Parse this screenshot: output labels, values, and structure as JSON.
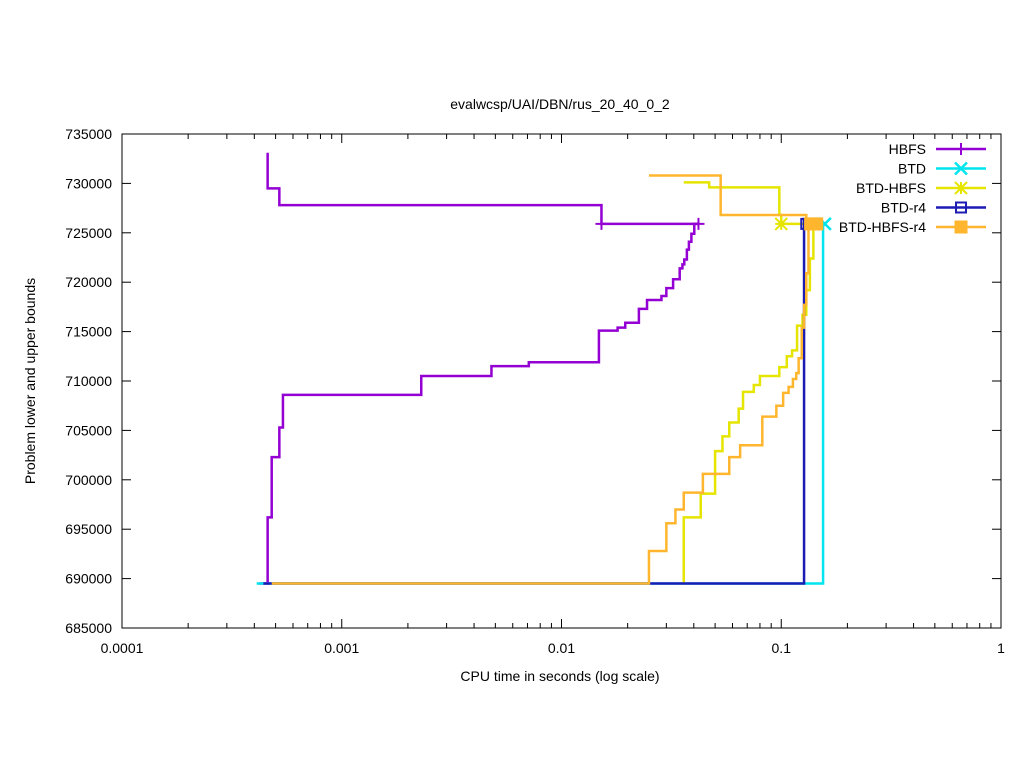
{
  "chart_data": {
    "type": "line",
    "title": "evalwcsp/UAI/DBN/rus_20_40_0_2",
    "xlabel": "CPU time in seconds (log scale)",
    "ylabel": "Problem lower and upper bounds",
    "xscale": "log",
    "xlim": [
      0.0001,
      1
    ],
    "ylim": [
      685000,
      735000
    ],
    "grid": false,
    "legend_position": "top-right",
    "x_ticks": [
      {
        "value": 0.0001,
        "label": "0.0001"
      },
      {
        "value": 0.001,
        "label": "0.001"
      },
      {
        "value": 0.01,
        "label": "0.01"
      },
      {
        "value": 0.1,
        "label": "0.1"
      },
      {
        "value": 1,
        "label": "1"
      }
    ],
    "y_ticks": [
      {
        "value": 685000,
        "label": "685000"
      },
      {
        "value": 690000,
        "label": "690000"
      },
      {
        "value": 695000,
        "label": "695000"
      },
      {
        "value": 700000,
        "label": "700000"
      },
      {
        "value": 705000,
        "label": "705000"
      },
      {
        "value": 710000,
        "label": "710000"
      },
      {
        "value": 715000,
        "label": "715000"
      },
      {
        "value": 720000,
        "label": "720000"
      },
      {
        "value": 725000,
        "label": "725000"
      },
      {
        "value": 730000,
        "label": "730000"
      },
      {
        "value": 735000,
        "label": "735000"
      }
    ],
    "series": [
      {
        "name": "HBFS",
        "color": "#9400d3",
        "marker": "plus",
        "lines": [
          [
            [
              0.00046,
              733100
            ],
            [
              0.00046,
              729500
            ],
            [
              0.00052,
              729500
            ],
            [
              0.00052,
              727800
            ],
            [
              0.0152,
              727800
            ],
            [
              0.0152,
              725900
            ],
            [
              0.042,
              725900
            ]
          ],
          [
            [
              0.00042,
              689500
            ],
            [
              0.00046,
              689500
            ],
            [
              0.00046,
              696200
            ],
            [
              0.00048,
              696200
            ],
            [
              0.00048,
              702300
            ],
            [
              0.00052,
              702300
            ],
            [
              0.00052,
              705300
            ],
            [
              0.00054,
              705300
            ],
            [
              0.00054,
              708600
            ],
            [
              0.0023,
              708600
            ],
            [
              0.0023,
              710500
            ],
            [
              0.0048,
              710500
            ],
            [
              0.0048,
              711500
            ],
            [
              0.0071,
              711500
            ],
            [
              0.0071,
              711900
            ],
            [
              0.0148,
              711900
            ],
            [
              0.0148,
              715100
            ],
            [
              0.018,
              715100
            ],
            [
              0.018,
              715400
            ],
            [
              0.0195,
              715400
            ],
            [
              0.0195,
              715900
            ],
            [
              0.0225,
              715900
            ],
            [
              0.0225,
              717300
            ],
            [
              0.0245,
              717300
            ],
            [
              0.0245,
              718200
            ],
            [
              0.0285,
              718200
            ],
            [
              0.0285,
              718600
            ],
            [
              0.03,
              718600
            ],
            [
              0.03,
              719400
            ],
            [
              0.0322,
              719400
            ],
            [
              0.0322,
              720300
            ],
            [
              0.0345,
              720300
            ],
            [
              0.0345,
              721400
            ],
            [
              0.0355,
              721400
            ],
            [
              0.0355,
              721800
            ],
            [
              0.0362,
              721800
            ],
            [
              0.0362,
              722300
            ],
            [
              0.0372,
              722300
            ],
            [
              0.0372,
              723300
            ],
            [
              0.038,
              723300
            ],
            [
              0.038,
              724100
            ],
            [
              0.039,
              724100
            ],
            [
              0.039,
              724900
            ],
            [
              0.0402,
              724900
            ],
            [
              0.0402,
              725900
            ],
            [
              0.042,
              725900
            ]
          ]
        ],
        "markers": [
          [
            0.0152,
            725900
          ],
          [
            0.042,
            725900
          ]
        ]
      },
      {
        "name": "BTD",
        "color": "#00e5ee",
        "marker": "cross",
        "lines": [
          [
            [
              0.00041,
              689500
            ],
            [
              0.155,
              689500
            ],
            [
              0.155,
              725900
            ]
          ],
          [
            [
              0.155,
              725900
            ],
            [
              0.16,
              725900
            ]
          ]
        ],
        "markers": [
          [
            0.158,
            725900
          ]
        ]
      },
      {
        "name": "BTD-HBFS",
        "color": "#e5e500",
        "marker": "star",
        "lines": [
          [
            [
              0.036,
              730100
            ],
            [
              0.047,
              730100
            ],
            [
              0.047,
              729600
            ],
            [
              0.098,
              729600
            ],
            [
              0.098,
              726800
            ],
            [
              0.1,
              726800
            ],
            [
              0.1,
              725900
            ],
            [
              0.14,
              725900
            ]
          ],
          [
            [
              0.036,
              689500
            ],
            [
              0.036,
              696200
            ],
            [
              0.043,
              696200
            ],
            [
              0.043,
              698600
            ],
            [
              0.05,
              698600
            ],
            [
              0.05,
              702900
            ],
            [
              0.054,
              702900
            ],
            [
              0.054,
              704400
            ],
            [
              0.058,
              704400
            ],
            [
              0.058,
              705800
            ],
            [
              0.064,
              705800
            ],
            [
              0.064,
              707200
            ],
            [
              0.067,
              707200
            ],
            [
              0.067,
              708900
            ],
            [
              0.075,
              708900
            ],
            [
              0.075,
              709600
            ],
            [
              0.08,
              709600
            ],
            [
              0.08,
              710500
            ],
            [
              0.098,
              710500
            ],
            [
              0.098,
              711400
            ],
            [
              0.106,
              711400
            ],
            [
              0.106,
              712500
            ],
            [
              0.112,
              712500
            ],
            [
              0.112,
              713100
            ],
            [
              0.118,
              713100
            ],
            [
              0.118,
              715600
            ],
            [
              0.125,
              715600
            ],
            [
              0.125,
              716700
            ],
            [
              0.13,
              716700
            ],
            [
              0.13,
              719200
            ],
            [
              0.135,
              719200
            ],
            [
              0.135,
              722400
            ],
            [
              0.14,
              722400
            ],
            [
              0.14,
              725900
            ]
          ]
        ],
        "markers": [
          [
            0.1,
            725900
          ],
          [
            0.14,
            725900
          ]
        ]
      },
      {
        "name": "BTD-r4",
        "color": "#1c1cb4",
        "marker": "open-square",
        "lines": [
          [
            [
              0.00044,
              689500
            ],
            [
              0.127,
              689500
            ],
            [
              0.127,
              726400
            ],
            [
              0.13,
              726400
            ],
            [
              0.13,
              725900
            ],
            [
              0.135,
              725900
            ]
          ]
        ],
        "markers": [
          [
            0.13,
            725900
          ]
        ]
      },
      {
        "name": "BTD-HBFS-r4",
        "color": "#ffb62e",
        "marker": "filled-square",
        "lines": [
          [
            [
              0.025,
              730800
            ],
            [
              0.053,
              730800
            ],
            [
              0.053,
              726800
            ],
            [
              0.13,
              726800
            ],
            [
              0.13,
              725900
            ],
            [
              0.145,
              725900
            ]
          ],
          [
            [
              0.00048,
              689500
            ],
            [
              0.025,
              689500
            ],
            [
              0.025,
              692800
            ],
            [
              0.03,
              692800
            ],
            [
              0.03,
              695600
            ],
            [
              0.033,
              695600
            ],
            [
              0.033,
              697000
            ],
            [
              0.036,
              697000
            ],
            [
              0.036,
              698700
            ],
            [
              0.044,
              698700
            ],
            [
              0.044,
              700600
            ],
            [
              0.058,
              700600
            ],
            [
              0.058,
              702300
            ],
            [
              0.065,
              702300
            ],
            [
              0.065,
              703500
            ],
            [
              0.082,
              703500
            ],
            [
              0.082,
              706400
            ],
            [
              0.095,
              706400
            ],
            [
              0.095,
              707500
            ],
            [
              0.102,
              707500
            ],
            [
              0.102,
              708800
            ],
            [
              0.108,
              708800
            ],
            [
              0.108,
              709400
            ],
            [
              0.113,
              709400
            ],
            [
              0.113,
              710200
            ],
            [
              0.117,
              710200
            ],
            [
              0.117,
              710800
            ],
            [
              0.12,
              710800
            ],
            [
              0.12,
              712300
            ],
            [
              0.124,
              712300
            ],
            [
              0.124,
              715400
            ],
            [
              0.127,
              715400
            ],
            [
              0.127,
              717700
            ],
            [
              0.13,
              717700
            ],
            [
              0.13,
              720900
            ],
            [
              0.133,
              720900
            ],
            [
              0.133,
              725900
            ],
            [
              0.145,
              725900
            ]
          ]
        ],
        "markers": [
          [
            0.136,
            725900
          ],
          [
            0.145,
            725900
          ]
        ]
      }
    ]
  }
}
